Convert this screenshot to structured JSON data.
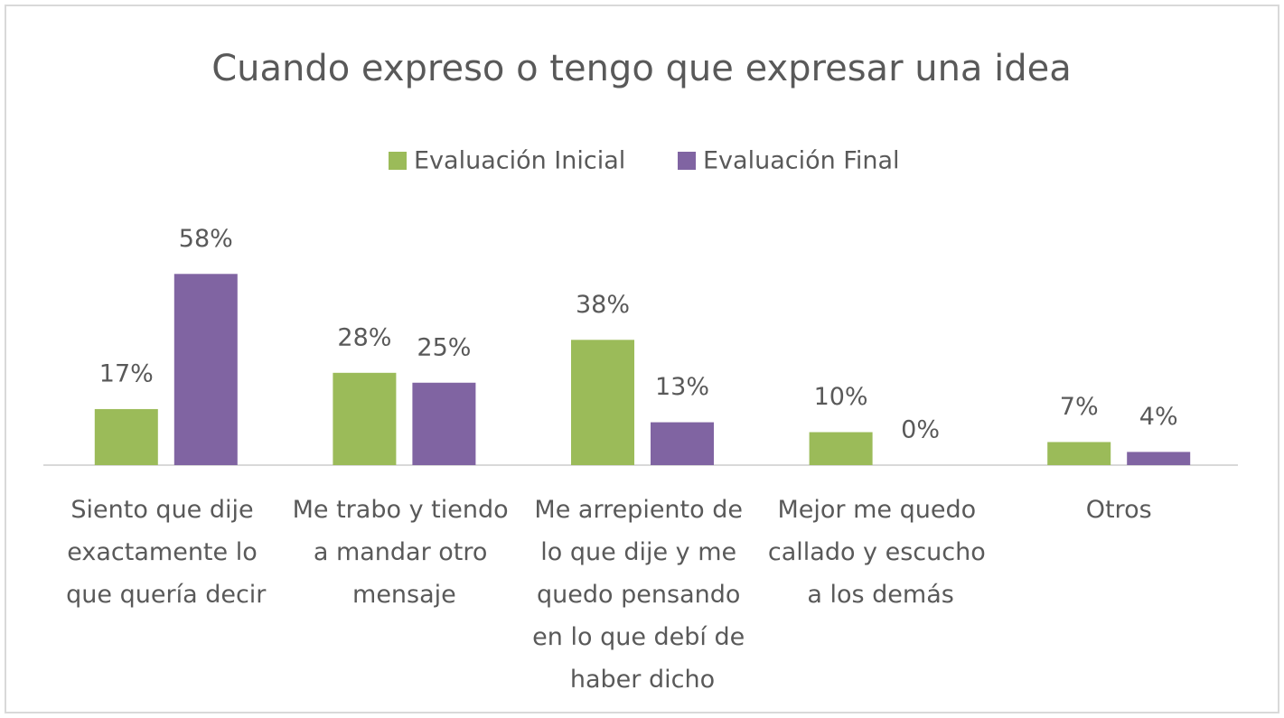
{
  "chart_data": {
    "type": "bar",
    "title": "Cuando expreso o tengo que expresar una idea",
    "categories": [
      "Siento que dije exactamente lo que quería decir",
      "Me trabo y tiendo a mandar otro mensaje",
      "Me arrepiento de lo que dije y me quedo pensando en lo que debí de haber dicho",
      "Mejor me quedo callado y escucho a los demás",
      "Otros"
    ],
    "series": [
      {
        "name": "Evaluación Inicial",
        "color": "#9bbb59",
        "values": [
          17,
          28,
          38,
          10,
          7
        ],
        "value_labels": [
          "17%",
          "28%",
          "38%",
          "10%",
          "7%"
        ]
      },
      {
        "name": "Evaluación Final",
        "color": "#8064a2",
        "values": [
          58,
          25,
          13,
          0,
          4
        ],
        "value_labels": [
          "58%",
          "25%",
          "13%",
          "0%",
          "4%"
        ]
      }
    ],
    "legend": "top"
  }
}
